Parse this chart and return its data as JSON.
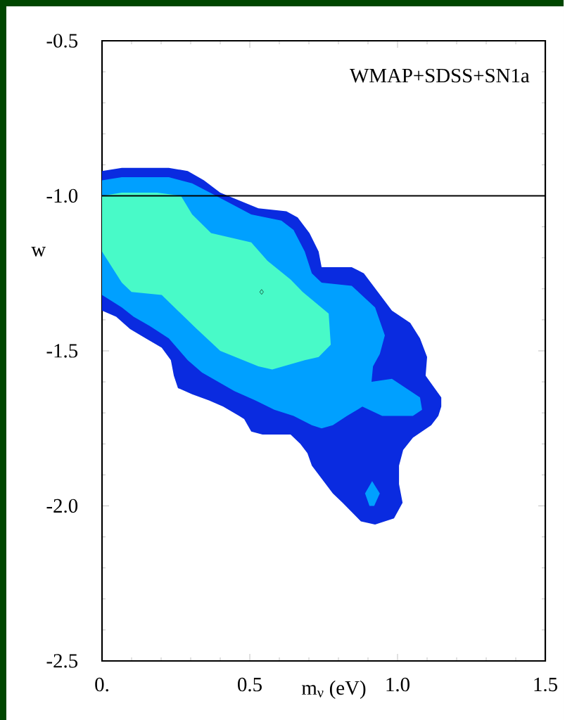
{
  "chart_data": {
    "type": "area",
    "xlabel": "m$_{ν}$ (eV)",
    "ylabel": "w",
    "annotations": [
      "WMAP+SDSS+SN1a"
    ],
    "xlim": [
      0,
      1.5
    ],
    "ylim": [
      -2.5,
      -0.5
    ],
    "xticks": [
      {
        "value": 0,
        "label": "0."
      },
      0.5,
      {
        "value": 1.0,
        "label": "1.0"
      },
      1.5
    ],
    "yticks": [
      -2.5,
      {
        "value": -2.0,
        "label": "-2.0"
      },
      -1.5,
      {
        "value": -1.0,
        "label": "-1.0"
      },
      -0.5
    ],
    "ref_lines": [
      {
        "axis": "y",
        "value": -1.0,
        "color": "#000000"
      }
    ],
    "series": [
      {
        "color": "#0a2be0",
        "x": [
          0,
          0.067,
          0.226,
          0.29,
          0.345,
          0.4,
          0.529,
          0.624,
          0.662,
          0.702,
          0.733,
          0.743,
          0.845,
          0.886,
          0.981,
          1.043,
          1.076,
          1.1,
          1.095,
          1.148,
          1.148,
          1.138,
          1.114,
          1.052,
          1.019,
          1.005,
          1.005,
          1.017,
          0.988,
          0.924,
          0.876,
          0.814,
          0.781,
          0.71,
          0.695,
          0.671,
          0.638,
          0.607,
          0.543,
          0.505,
          0.481,
          0.464,
          0.41,
          0.362,
          0.305,
          0.257,
          0.243,
          0.233,
          0.202,
          0.148,
          0.095,
          0.048,
          0
        ],
        "values": [
          -0.92,
          -0.91,
          -0.91,
          -0.92,
          -0.95,
          -0.99,
          -1.04,
          -1.05,
          -1.07,
          -1.12,
          -1.18,
          -1.23,
          -1.23,
          -1.25,
          -1.37,
          -1.41,
          -1.46,
          -1.52,
          -1.58,
          -1.65,
          -1.68,
          -1.71,
          -1.74,
          -1.78,
          -1.82,
          -1.87,
          -1.93,
          -1.99,
          -2.04,
          -2.06,
          -2.05,
          -1.99,
          -1.96,
          -1.87,
          -1.83,
          -1.8,
          -1.77,
          -1.77,
          -1.77,
          -1.76,
          -1.72,
          -1.71,
          -1.68,
          -1.66,
          -1.64,
          -1.62,
          -1.58,
          -1.53,
          -1.49,
          -1.46,
          -1.43,
          -1.39,
          -1.37
        ]
      },
      {
        "color": "#00a0ff",
        "x": [
          0,
          0.067,
          0.226,
          0.305,
          0.386,
          0.505,
          0.607,
          0.648,
          0.686,
          0.71,
          0.743,
          0.845,
          0.924,
          0.957,
          0.94,
          0.917,
          0.912,
          0.981,
          1.076,
          1.083,
          1.052,
          0.948,
          0.881,
          0.829,
          0.781,
          0.743,
          0.71,
          0.648,
          0.583,
          0.519,
          0.448,
          0.338,
          0.29,
          0.226,
          0.162,
          0.107,
          0.067,
          0
        ],
        "values": [
          -0.95,
          -0.94,
          -0.94,
          -0.96,
          -1.0,
          -1.06,
          -1.08,
          -1.11,
          -1.18,
          -1.25,
          -1.28,
          -1.29,
          -1.36,
          -1.45,
          -1.51,
          -1.55,
          -1.6,
          -1.59,
          -1.65,
          -1.69,
          -1.71,
          -1.71,
          -1.68,
          -1.71,
          -1.74,
          -1.75,
          -1.74,
          -1.71,
          -1.69,
          -1.66,
          -1.63,
          -1.57,
          -1.53,
          -1.46,
          -1.42,
          -1.39,
          -1.36,
          -1.32
        ]
      },
      {
        "color": "#48fac8",
        "x": [
          0,
          0.067,
          0.186,
          0.267,
          0.305,
          0.369,
          0.505,
          0.56,
          0.638,
          0.679,
          0.767,
          0.774,
          0.733,
          0.686,
          0.576,
          0.529,
          0.4,
          0.321,
          0.202,
          0.1,
          0.067,
          0
        ],
        "values": [
          -1.0,
          -0.99,
          -0.99,
          -1.0,
          -1.06,
          -1.12,
          -1.15,
          -1.21,
          -1.27,
          -1.31,
          -1.38,
          -1.48,
          -1.52,
          -1.53,
          -1.56,
          -1.55,
          -1.5,
          -1.43,
          -1.32,
          -1.31,
          -1.28,
          -1.18
        ]
      },
      {
        "color": "#00a0ff",
        "x": [
          0.914,
          0.94,
          0.921,
          0.905,
          0.89
        ],
        "values": [
          -1.92,
          -1.96,
          -2.0,
          -2.0,
          -1.96
        ]
      },
      {
        "type": "scatter",
        "color": "#1a5a40",
        "marker": "diamond",
        "x": [
          0.54
        ],
        "values": [
          -1.31
        ]
      }
    ]
  }
}
